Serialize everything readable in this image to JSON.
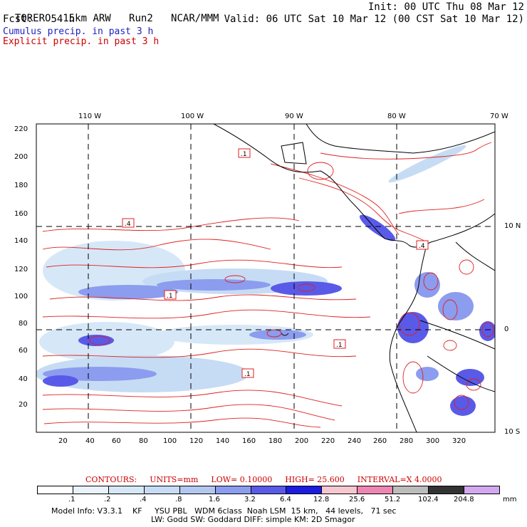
{
  "header": {
    "model": "TORERO",
    "resolution": "15km ARW",
    "run": "Run2",
    "org": "NCAR/MMM",
    "init": "Init: 00 UTC Thu 08 Mar 12",
    "fcst_label": "Fcst:",
    "fcst_value": "54 h",
    "valid": "Valid: 06 UTC Sat 10 Mar 12 (00 CST Sat 10 Mar 12)",
    "cumulus": "Cumulus precip. in past 3 h",
    "explicit": "Explicit precip. in past 3 h"
  },
  "colors": {
    "cumulus_text": "#2020c0",
    "explicit_text": "#cc0000",
    "contour": "#e02020",
    "coast": "#000000"
  },
  "map": {
    "lon_labels": [
      "110 W",
      "100 W",
      "90 W",
      "80 W",
      "70 W"
    ],
    "lat_labels": [
      "10 N",
      "0",
      "10 S"
    ],
    "x_ticks": [
      "20",
      "40",
      "60",
      "80",
      "100",
      "120",
      "140",
      "160",
      "180",
      "200",
      "220",
      "240",
      "260",
      "280",
      "300",
      "320"
    ],
    "y_ticks": [
      "20",
      "40",
      "60",
      "80",
      "100",
      "120",
      "140",
      "160",
      "180",
      "200",
      "220"
    ],
    "box_labels": [
      ".1",
      ".4",
      ".1",
      ".1",
      ".1",
      ".4"
    ]
  },
  "legend": {
    "contours": "CONTOURS:",
    "units": "UNITS=mm",
    "low": "LOW= 0.10000",
    "high": "HIGH= 25.600",
    "interval": "INTERVAL=X 4.0000",
    "levels": [
      ".1",
      ".2",
      ".4",
      ".8",
      "1.6",
      "3.2",
      "6.4",
      "12.8",
      "25.6",
      "51.2",
      "102.4",
      "204.8"
    ],
    "unit_label": "mm",
    "bin_colors": [
      "#ffffff",
      "#eaf3fb",
      "#d6e8f7",
      "#c6dcf4",
      "#b3c8f0",
      "#8c9cee",
      "#5a5ae8",
      "#1c1ce0",
      "#f7c7cf",
      "#ee86b3",
      "#bcbcbc",
      "#333333",
      "#d3a8f0"
    ]
  },
  "model_info": {
    "line1": "Model Info: V3.3.1    KF     YSU PBL   WDM 6class  Noah LSM  15 km,   44 levels,   71 sec",
    "line2": "LW: Godd SW: Goddard DIFF: simple KM: 2D Smagor"
  }
}
